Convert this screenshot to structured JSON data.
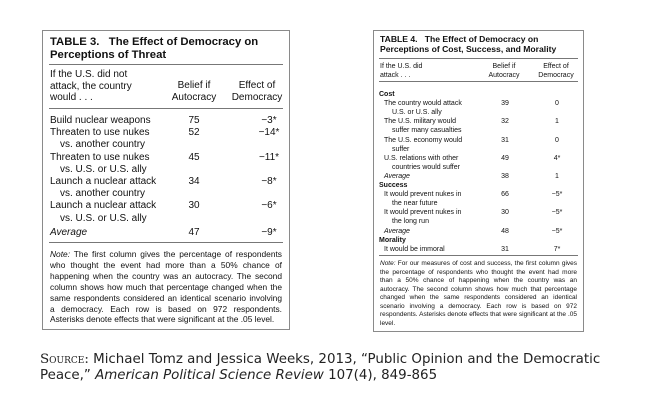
{
  "table3": {
    "title_line1": "TABLE 3.   The Effect of Democracy on",
    "title_line2": "Perceptions of Threat",
    "col0_header": [
      "If the U.S. did not",
      "attack, the country",
      "would . . ."
    ],
    "col1_header": [
      "Belief if",
      "Autocracy"
    ],
    "col2_header": [
      "Effect of",
      "Democracy"
    ],
    "rows": [
      {
        "label": [
          "Build nuclear weapons"
        ],
        "belief": "75",
        "effect": "−3*"
      },
      {
        "label": [
          "Threaten to use nukes",
          "vs. another country"
        ],
        "belief": "52",
        "effect": "−14*"
      },
      {
        "label": [
          "Threaten to use nukes",
          "vs. U.S. or U.S. ally"
        ],
        "belief": "45",
        "effect": "−11*"
      },
      {
        "label": [
          "Launch a nuclear attack",
          "vs. another country"
        ],
        "belief": "34",
        "effect": "−8*"
      },
      {
        "label": [
          "Launch a nuclear attack",
          "vs. U.S. or U.S. ally"
        ],
        "belief": "30",
        "effect": "−6*"
      },
      {
        "label": [
          "Average"
        ],
        "belief": "47",
        "effect": "−9*",
        "style": "italic"
      }
    ],
    "note_label": "Note:",
    "note_text": " The first column gives the percentage of respondents who thought the event had more than a 50% chance of happening when the country was an autocracy. The second column shows how much that percentage changed when the same respondents considered an identical scenario involving a democracy. Each row is based on 972 respondents. Asterisks denote effects that were significant at the .05 level."
  },
  "table4": {
    "title_line1": "TABLE 4.   The Effect of Democracy on",
    "title_line2": "Perceptions of Cost, Success, and Morality",
    "col0_header": [
      "If the U.S. did",
      "attack . . ."
    ],
    "col1_header": [
      "Belief if",
      "Autocracy"
    ],
    "col2_header": [
      "Effect of",
      "Democracy"
    ],
    "rows": [
      {
        "label": [
          "Cost"
        ],
        "style": "section"
      },
      {
        "label": [
          "The country would attack",
          "U.S. or U.S. ally"
        ],
        "belief": "39",
        "effect": "0"
      },
      {
        "label": [
          "The U.S. military would",
          "suffer many casualties"
        ],
        "belief": "32",
        "effect": "1"
      },
      {
        "label": [
          "The U.S. economy would",
          "suffer"
        ],
        "belief": "31",
        "effect": "0"
      },
      {
        "label": [
          "U.S. relations with other",
          "countries would suffer"
        ],
        "belief": "49",
        "effect": "4*"
      },
      {
        "label": [
          "Average"
        ],
        "belief": "38",
        "effect": "1",
        "style": "italic"
      },
      {
        "label": [
          "Success"
        ],
        "style": "section"
      },
      {
        "label": [
          "It would prevent nukes in",
          "the near future"
        ],
        "belief": "66",
        "effect": "−5*"
      },
      {
        "label": [
          "It would prevent nukes in",
          "the long run"
        ],
        "belief": "30",
        "effect": "−5*"
      },
      {
        "label": [
          "Average"
        ],
        "belief": "48",
        "effect": "−5*",
        "style": "italic"
      },
      {
        "label": [
          "Morality"
        ],
        "style": "section"
      },
      {
        "label": [
          "It would be immoral"
        ],
        "belief": "31",
        "effect": "7*"
      }
    ],
    "note_label": "Note:",
    "note_text": " For our measures of cost and success, the first column gives the percentage of respondents who thought the event had more than a 50% chance of happening when the country was an autocracy. The second column shows how much that percentage changed when the same respondents considered an identical scenario involving a democracy. Each row is based on 972 respondents. Asterisks denote effects that were significant at the .05 level."
  },
  "source": {
    "label": "Source:",
    "text1": " Michael Tomz and Jessica Weeks, 2013, “Public Opinion and the Democratic",
    "text2a": "Peace,” ",
    "journal": "American Political Science Review",
    "text2b": " 107(4), 849-865"
  }
}
